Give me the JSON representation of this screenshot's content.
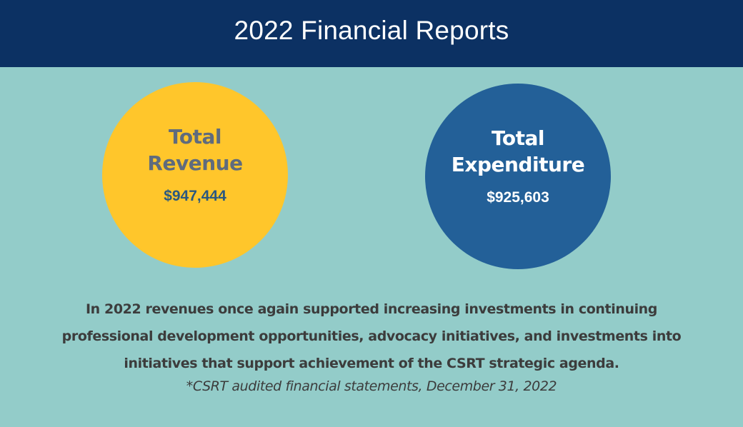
{
  "header": {
    "title": "2022 Financial Reports"
  },
  "revenue": {
    "label_line1": "Total",
    "label_line2": "Revenue",
    "amount": "$947,444"
  },
  "expenditure": {
    "label_line1": "Total",
    "label_line2": "Expenditure",
    "amount": "$925,603"
  },
  "summary": {
    "text": "In 2022 revenues once again supported increasing investments in continuing professional development opportunities, advocacy initiatives, and investments into initiatives that support achievement of the CSRT strategic agenda."
  },
  "footnote": {
    "text": "*CSRT audited financial statements, December 31, 2022"
  },
  "colors": {
    "header_bg": "#0c3163",
    "page_bg": "#93ccc9",
    "revenue_circle": "#ffc62b",
    "expenditure_circle": "#236098"
  }
}
